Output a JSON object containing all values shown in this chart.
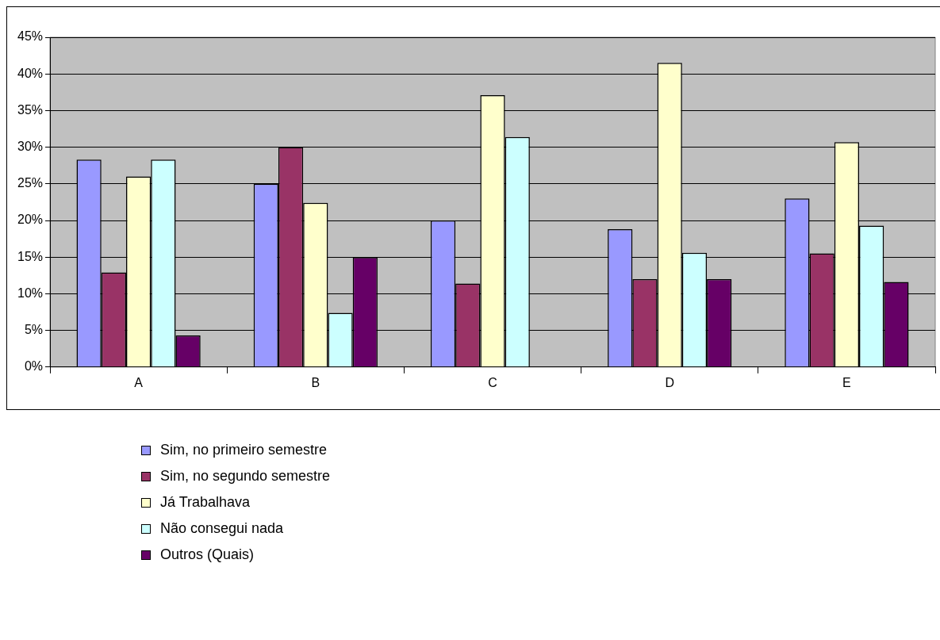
{
  "chart_data": {
    "type": "bar",
    "categories": [
      "A",
      "B",
      "C",
      "D",
      "E"
    ],
    "series": [
      {
        "name": "Sim, no primeiro semestre",
        "color": "#9999ff",
        "values": [
          28.3,
          25,
          20,
          18.8,
          23
        ]
      },
      {
        "name": "Sim, no segundo semestre",
        "color": "#993366",
        "values": [
          12.9,
          30,
          11.4,
          12,
          15.5
        ]
      },
      {
        "name": "Já Trabalhava",
        "color": "#ffffcc",
        "values": [
          26,
          22.4,
          37.1,
          41.5,
          30.7
        ]
      },
      {
        "name": "Não consegui nada",
        "color": "#ccffff",
        "values": [
          28.3,
          7.4,
          31.4,
          15.6,
          19.3
        ]
      },
      {
        "name": "Outros (Quais)",
        "color": "#660066",
        "values": [
          4.3,
          15,
          null,
          12,
          11.6
        ]
      }
    ],
    "ylim": [
      0,
      45
    ],
    "yticks": [
      {
        "value": 0,
        "label": "0%"
      },
      {
        "value": 5,
        "label": "5%"
      },
      {
        "value": 10,
        "label": "10%"
      },
      {
        "value": 15,
        "label": "15%"
      },
      {
        "value": 20,
        "label": "20%"
      },
      {
        "value": 25,
        "label": "25%"
      },
      {
        "value": 30,
        "label": "30%"
      },
      {
        "value": 35,
        "label": "35%"
      },
      {
        "value": 40,
        "label": "40%"
      },
      {
        "value": 45,
        "label": "45%"
      }
    ],
    "grid": "y",
    "legend": "bottom"
  }
}
